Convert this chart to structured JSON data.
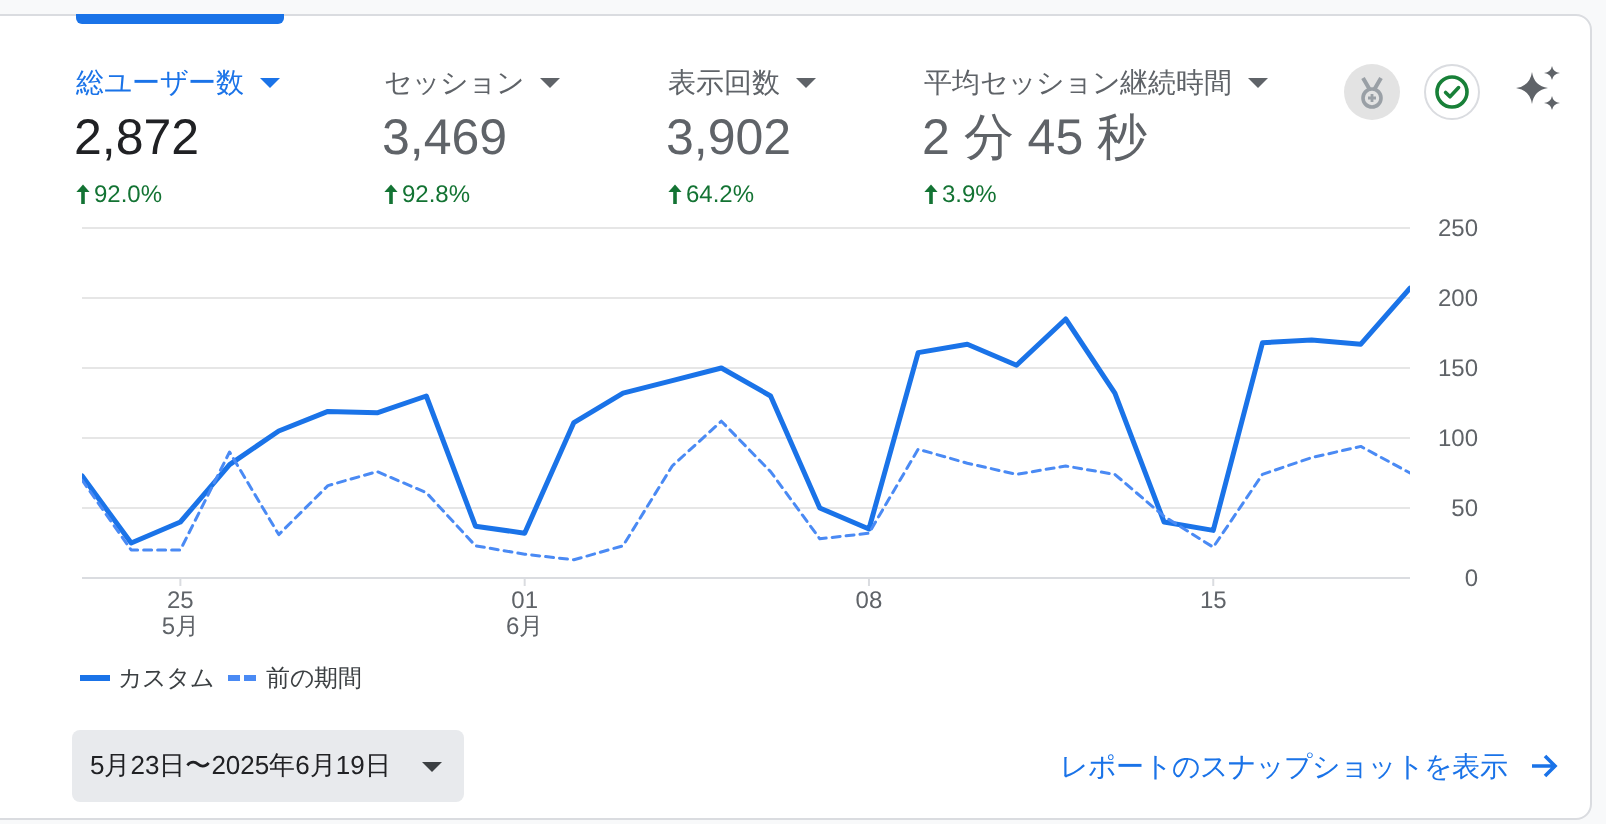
{
  "chart_data": {
    "type": "line",
    "x": [
      "2025-05-23",
      "2025-05-24",
      "2025-05-25",
      "2025-05-26",
      "2025-05-27",
      "2025-05-28",
      "2025-05-29",
      "2025-05-30",
      "2025-05-31",
      "2025-06-01",
      "2025-06-02",
      "2025-06-03",
      "2025-06-04",
      "2025-06-05",
      "2025-06-06",
      "2025-06-07",
      "2025-06-08",
      "2025-06-09",
      "2025-06-10",
      "2025-06-11",
      "2025-06-12",
      "2025-06-13",
      "2025-06-14",
      "2025-06-15",
      "2025-06-16",
      "2025-06-17",
      "2025-06-18",
      "2025-06-19"
    ],
    "series": [
      {
        "name": "カスタム",
        "color": "#1a73e8",
        "line_style": "solid",
        "values": [
          73,
          25,
          40,
          81,
          105,
          119,
          118,
          130,
          37,
          32,
          111,
          132,
          141,
          150,
          130,
          50,
          35,
          161,
          167,
          152,
          185,
          132,
          40,
          34,
          168,
          170,
          167,
          207
        ]
      },
      {
        "name": "前の期間",
        "color": "#4a8af4",
        "line_style": "dashed",
        "values": [
          70,
          20,
          20,
          90,
          31,
          66,
          76,
          61,
          23,
          17,
          13,
          23,
          80,
          112,
          76,
          28,
          32,
          92,
          82,
          74,
          80,
          74,
          44,
          22,
          74,
          86,
          94,
          75
        ]
      }
    ],
    "xlim": [
      "2025-05-23",
      "2025-06-19"
    ],
    "xticks": [
      {
        "value": "2025-05-25",
        "label": "25\n5月"
      },
      {
        "value": "2025-06-01",
        "label": "01\n6月"
      },
      {
        "value": "2025-06-08",
        "label": "08"
      },
      {
        "value": "2025-06-15",
        "label": "15"
      }
    ],
    "ylim": [
      0,
      250
    ],
    "yticks": [
      0,
      50,
      100,
      150,
      200,
      250
    ],
    "grid": "y",
    "legend": "bottom left",
    "annotations": [
      "総ユーザー数",
      "2,872",
      "92.0%",
      "セッション",
      "3,469",
      "92.8%",
      "表示回数",
      "3,902",
      "64.2%",
      "平均セッション継続時間",
      "2 分 45 秒",
      "3.9%",
      "5月23日〜2025年6月19日",
      "レポートのスナップショットを表示"
    ]
  }
}
